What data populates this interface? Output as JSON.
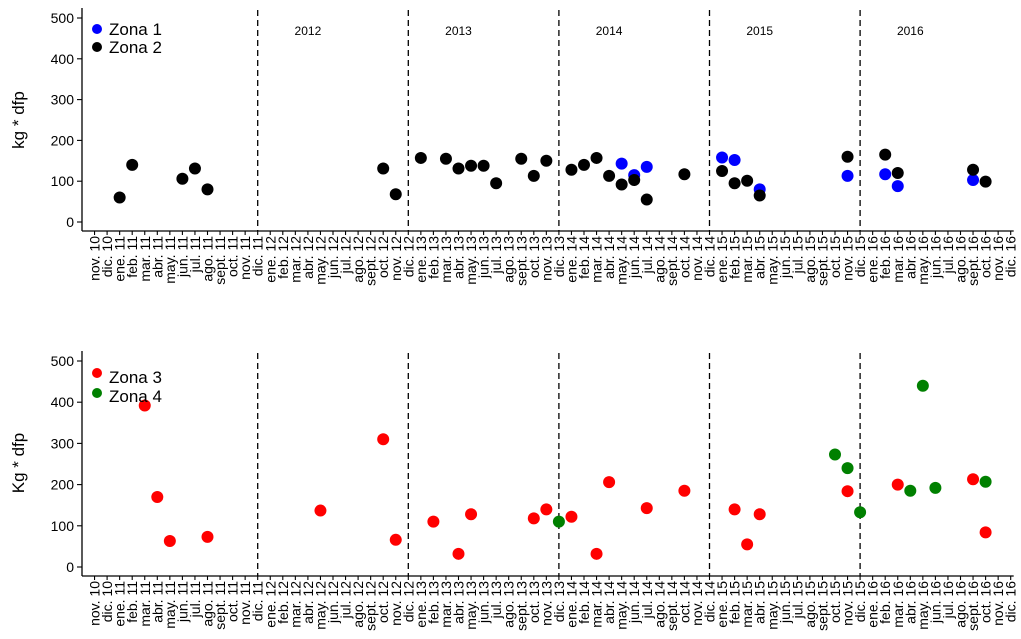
{
  "months": [
    "nov. 10",
    "dic. 10",
    "ene. 11",
    "feb. 11",
    "mar. 11",
    "abr. 11",
    "may. 11",
    "jun. 11",
    "jul. 11",
    "ago. 11",
    "sept. 11",
    "oct. 11",
    "nov. 11",
    "dic. 11",
    "ene. 12",
    "feb. 12",
    "mar. 12",
    "abr. 12",
    "may. 12",
    "jun. 12",
    "jul. 12",
    "ago. 12",
    "sept. 12",
    "oct. 12",
    "nov. 12",
    "dic. 12",
    "ene. 13",
    "feb. 13",
    "mar. 13",
    "abr. 13",
    "may. 13",
    "jun. 13",
    "jul. 13",
    "ago. 13",
    "sept. 13",
    "oct. 13",
    "nov. 13",
    "dic. 13",
    "ene. 14",
    "feb. 14",
    "mar. 14",
    "abr. 14",
    "may. 14",
    "jun. 14",
    "jul. 14",
    "ago. 14",
    "sept. 14",
    "oct. 14",
    "nov. 14",
    "dic. 14",
    "ene. 15",
    "feb. 15",
    "mar. 15",
    "abr. 15",
    "may. 15",
    "jun. 15",
    "jul. 15",
    "ago. 15",
    "sept. 15",
    "oct. 15",
    "nov. 15",
    "dic. 15",
    "ene. 16",
    "feb. 16",
    "mar. 16",
    "abr. 16",
    "may. 16",
    "jun. 16",
    "jul. 16",
    "ago. 16",
    "sept. 16",
    "oct. 16",
    "nov. 16",
    "dic. 16"
  ],
  "colors": {
    "zona1": "#0000ff",
    "zona2": "#000000",
    "zona3": "#ff0000",
    "zona4": "#008000"
  },
  "chart_data": [
    {
      "type": "scatter",
      "ylabel": "kg * dfp",
      "ylim": [
        0,
        500
      ],
      "yticks": [
        0,
        100,
        200,
        300,
        400,
        500
      ],
      "year_dividers": [
        "dic. 11",
        "dic. 12",
        "dic. 13",
        "dic. 14",
        "dic. 15"
      ],
      "year_labels": [
        "2012",
        "2013",
        "2014",
        "2015",
        "2016"
      ],
      "year_label_positions": [
        "abr. 12",
        "abr. 13",
        "abr. 14",
        "abr. 15",
        "abr. 16"
      ],
      "legend_position": "top-left",
      "series": [
        {
          "name": "Zona 1",
          "color_key": "zona1",
          "points": [
            {
              "x": "may. 14",
              "y": 143
            },
            {
              "x": "jun. 14",
              "y": 115
            },
            {
              "x": "jul. 14",
              "y": 135
            },
            {
              "x": "ene. 15",
              "y": 158
            },
            {
              "x": "feb. 15",
              "y": 152
            },
            {
              "x": "abr. 15",
              "y": 80
            },
            {
              "x": "nov. 15",
              "y": 113
            },
            {
              "x": "feb. 16",
              "y": 117
            },
            {
              "x": "mar. 16",
              "y": 88
            },
            {
              "x": "sept. 16",
              "y": 103
            }
          ]
        },
        {
          "name": "Zona 2",
          "color_key": "zona2",
          "points": [
            {
              "x": "ene. 11",
              "y": 60
            },
            {
              "x": "feb. 11",
              "y": 140
            },
            {
              "x": "jun. 11",
              "y": 106
            },
            {
              "x": "jul. 11",
              "y": 131
            },
            {
              "x": "ago. 11",
              "y": 80
            },
            {
              "x": "oct. 12",
              "y": 131
            },
            {
              "x": "nov. 12",
              "y": 68
            },
            {
              "x": "ene. 13",
              "y": 157
            },
            {
              "x": "mar. 13",
              "y": 155
            },
            {
              "x": "abr. 13",
              "y": 131
            },
            {
              "x": "may. 13",
              "y": 138
            },
            {
              "x": "jun. 13",
              "y": 138
            },
            {
              "x": "jul. 13",
              "y": 95
            },
            {
              "x": "sept. 13",
              "y": 155
            },
            {
              "x": "oct. 13",
              "y": 113
            },
            {
              "x": "nov. 13",
              "y": 150
            },
            {
              "x": "ene. 14",
              "y": 128
            },
            {
              "x": "feb. 14",
              "y": 140
            },
            {
              "x": "mar. 14",
              "y": 157
            },
            {
              "x": "abr. 14",
              "y": 113
            },
            {
              "x": "may. 14",
              "y": 92
            },
            {
              "x": "jun. 14",
              "y": 103
            },
            {
              "x": "jul. 14",
              "y": 55
            },
            {
              "x": "oct. 14",
              "y": 117
            },
            {
              "x": "ene. 15",
              "y": 125
            },
            {
              "x": "feb. 15",
              "y": 95
            },
            {
              "x": "mar. 15",
              "y": 101
            },
            {
              "x": "abr. 15",
              "y": 65
            },
            {
              "x": "nov. 15",
              "y": 160
            },
            {
              "x": "feb. 16",
              "y": 165
            },
            {
              "x": "mar. 16",
              "y": 120
            },
            {
              "x": "sept. 16",
              "y": 128
            },
            {
              "x": "oct. 16",
              "y": 99
            }
          ]
        }
      ]
    },
    {
      "type": "scatter",
      "ylabel": "Kg * dfp",
      "ylim": [
        0,
        500
      ],
      "yticks": [
        0,
        100,
        200,
        300,
        400,
        500
      ],
      "year_dividers": [
        "dic. 11",
        "dic. 12",
        "dic. 13",
        "dic. 14",
        "dic. 15"
      ],
      "legend_position": "top-left",
      "series": [
        {
          "name": "Zona 3",
          "color_key": "zona3",
          "points": [
            {
              "x": "mar. 11",
              "y": 392
            },
            {
              "x": "abr. 11",
              "y": 170
            },
            {
              "x": "may. 11",
              "y": 63
            },
            {
              "x": "ago. 11",
              "y": 73
            },
            {
              "x": "may. 12",
              "y": 137
            },
            {
              "x": "oct. 12",
              "y": 310
            },
            {
              "x": "nov. 12",
              "y": 66
            },
            {
              "x": "feb. 13",
              "y": 110
            },
            {
              "x": "abr. 13",
              "y": 32
            },
            {
              "x": "may. 13",
              "y": 128
            },
            {
              "x": "oct. 13",
              "y": 118
            },
            {
              "x": "nov. 13",
              "y": 140
            },
            {
              "x": "ene. 14",
              "y": 122
            },
            {
              "x": "mar. 14",
              "y": 32
            },
            {
              "x": "abr. 14",
              "y": 206
            },
            {
              "x": "jul. 14",
              "y": 143
            },
            {
              "x": "oct. 14",
              "y": 185
            },
            {
              "x": "feb. 15",
              "y": 140
            },
            {
              "x": "mar. 15",
              "y": 55
            },
            {
              "x": "abr. 15",
              "y": 128
            },
            {
              "x": "nov. 15",
              "y": 184
            },
            {
              "x": "mar. 16",
              "y": 200
            },
            {
              "x": "sept. 16",
              "y": 213
            },
            {
              "x": "oct. 16",
              "y": 84
            }
          ]
        },
        {
          "name": "Zona 4",
          "color_key": "zona4",
          "points": [
            {
              "x": "dic. 13",
              "y": 110
            },
            {
              "x": "oct. 15",
              "y": 273
            },
            {
              "x": "nov. 15",
              "y": 240
            },
            {
              "x": "dic. 15",
              "y": 133
            },
            {
              "x": "abr. 16",
              "y": 185
            },
            {
              "x": "may. 16",
              "y": 440
            },
            {
              "x": "jun. 16",
              "y": 192
            },
            {
              "x": "oct. 16",
              "y": 207
            }
          ]
        }
      ]
    }
  ]
}
